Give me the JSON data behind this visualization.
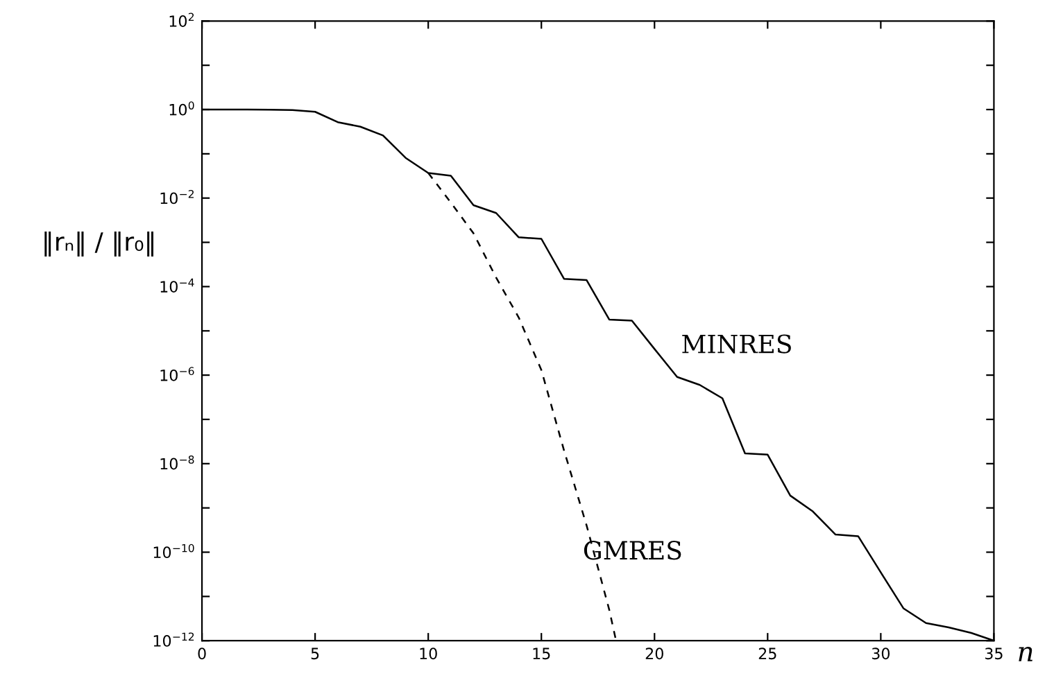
{
  "chart_data": {
    "type": "line",
    "xlabel": "n",
    "ylabel": "‖rₙ‖ / ‖r₀‖",
    "log": "y",
    "grid": false,
    "legend": false,
    "xlim": [
      0,
      35
    ],
    "xticks": [
      0,
      5,
      10,
      15,
      20,
      25,
      30,
      35
    ],
    "ylim": [
      1e-12,
      100
    ],
    "yticks": [
      {
        "value": 100,
        "label": "10$^{2}$"
      },
      {
        "value": 10,
        "label": null
      },
      {
        "value": 1,
        "label": "10$^{0}$"
      },
      {
        "value": 0.1,
        "label": null
      },
      {
        "value": 0.01,
        "label": "10$^{−2}$"
      },
      {
        "value": 0.001,
        "label": null
      },
      {
        "value": 0.0001,
        "label": "10$^{−4}$"
      },
      {
        "value": 1e-05,
        "label": null
      },
      {
        "value": 1e-06,
        "label": "10$^{−6}$"
      },
      {
        "value": 1e-07,
        "label": null
      },
      {
        "value": 1e-08,
        "label": "10$^{−8}$"
      },
      {
        "value": 1e-09,
        "label": null
      },
      {
        "value": 1e-10,
        "label": "10$^{−10}$"
      },
      {
        "value": 1e-11,
        "label": null
      },
      {
        "value": 1e-12,
        "label": "10$^{−12}$"
      }
    ],
    "series": [
      {
        "name": "MINRES",
        "color": "#000000",
        "line_style": "solid",
        "x": [
          0,
          1,
          2,
          3,
          4,
          5,
          6,
          7,
          8,
          9,
          10,
          11,
          12,
          13,
          14,
          15,
          16,
          17,
          18,
          19,
          20,
          21,
          22,
          23,
          24,
          25,
          26,
          27,
          28,
          29,
          30,
          31,
          32,
          33,
          34,
          35
        ],
        "values": [
          1,
          1,
          1,
          0.99,
          0.97,
          0.89,
          0.52,
          0.41,
          0.26,
          0.081,
          0.037,
          0.032,
          0.0069,
          0.0046,
          0.0013,
          0.0012,
          0.00015,
          0.00014,
          1.8e-05,
          1.7e-05,
          3.9e-06,
          9.1e-07,
          6e-07,
          3e-07,
          1.7e-08,
          1.6e-08,
          1.9e-09,
          8.3e-10,
          2.5e-10,
          2.3e-10,
          3.5e-11,
          5.4e-12,
          2.5e-12,
          2e-12,
          1.5e-12,
          1e-12
        ]
      },
      {
        "name": "GMRES",
        "color": "#000000",
        "line_style": "dashed",
        "x": [
          10,
          11,
          12,
          13,
          14,
          15,
          16,
          17,
          18,
          18.3
        ],
        "values": [
          0.037,
          0.0079,
          0.0016,
          0.00016,
          2e-05,
          1.3e-06,
          2e-08,
          4e-10,
          5e-12,
          1e-12
        ]
      }
    ]
  }
}
